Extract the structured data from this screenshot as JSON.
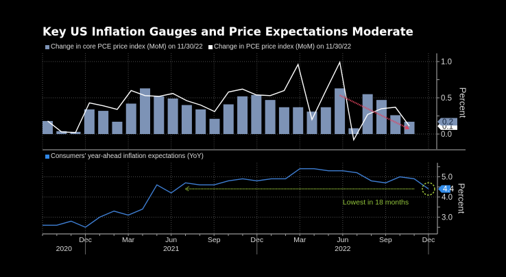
{
  "title": "Key US Inflation Gauges and Price Expectations Moderate",
  "legend_top": [
    {
      "label": "Change in core PCE price index (MoM) on 11/30/22",
      "color": "#7d93b6"
    },
    {
      "label": "Change in PCE price index (MoM) on 11/30/22",
      "color": "#ffffff"
    }
  ],
  "legend_bottom": [
    {
      "label": "Consumers' year-ahead inflation expectations (YoY)",
      "color": "#2f86e6"
    }
  ],
  "colors": {
    "background": "#000000",
    "grid": "#4f4f4f",
    "axis": "#9a9a9a",
    "text": "#d9d9d9",
    "separator": "#5a5a5a"
  },
  "chart_data": [
    {
      "type": "bar",
      "panel": "top",
      "title": "",
      "categories": [
        "Sep 2020",
        "Oct 2020",
        "Nov 2020",
        "Dec 2020",
        "Jan 2021",
        "Feb 2021",
        "Mar 2021",
        "Apr 2021",
        "May 2021",
        "Jun 2021",
        "Jul 2021",
        "Aug 2021",
        "Sep 2021",
        "Oct 2021",
        "Nov 2021",
        "Dec 2021",
        "Jan 2022",
        "Feb 2022",
        "Mar 2022",
        "Apr 2022",
        "May 2022",
        "Jun 2022",
        "Jul 2022",
        "Aug 2022",
        "Sep 2022",
        "Oct 2022",
        "Nov 2022"
      ],
      "series": [
        {
          "name": "Change in core PCE price index (MoM) on 11/30/22",
          "type": "bar",
          "color": "#7d93b6",
          "values": [
            0.18,
            0.04,
            0.03,
            0.34,
            0.32,
            0.17,
            0.42,
            0.63,
            0.52,
            0.49,
            0.4,
            0.34,
            0.21,
            0.41,
            0.52,
            0.54,
            0.47,
            0.37,
            0.37,
            0.31,
            0.37,
            0.63,
            0.08,
            0.55,
            0.47,
            0.26,
            0.17
          ]
        },
        {
          "name": "Change in PCE price index (MoM) on 11/30/22",
          "type": "line",
          "color": "#ffffff",
          "values": [
            0.18,
            0.03,
            0.02,
            0.43,
            0.39,
            0.34,
            0.6,
            0.53,
            0.52,
            0.56,
            0.46,
            0.4,
            0.31,
            0.58,
            0.62,
            0.54,
            0.53,
            0.6,
            0.96,
            0.2,
            0.6,
            0.99,
            -0.08,
            0.27,
            0.35,
            0.37,
            0.11
          ]
        }
      ],
      "xlabel": "",
      "ylabel": "Percent",
      "ylim": [
        -0.2,
        1.1
      ],
      "yticks": [
        0.0,
        0.5,
        1.0
      ],
      "ytick_labels": [
        "0.0",
        "0.5",
        "1.0"
      ],
      "grid": true,
      "last_value_labels": [
        {
          "series": 1,
          "text": "0.1",
          "value": 0.11,
          "bg": "#ffffff",
          "fg": "#222222"
        },
        {
          "series": 0,
          "text": "0.2",
          "value": 0.17,
          "bg": "#7d93b6",
          "fg": "#14233a"
        }
      ],
      "annotations": [
        {
          "type": "arrow",
          "style": "dotted",
          "color": "#e0445f",
          "from": {
            "category": "Jun 2022",
            "value": 0.535
          },
          "to": {
            "category": "Nov 2022",
            "value": 0.07
          }
        }
      ]
    },
    {
      "type": "line",
      "panel": "bottom",
      "title": "",
      "x": [
        "Sep 2020",
        "Oct 2020",
        "Nov 2020",
        "Dec 2020",
        "Jan 2021",
        "Feb 2021",
        "Mar 2021",
        "Apr 2021",
        "May 2021",
        "Jun 2021",
        "Jul 2021",
        "Aug 2021",
        "Sep 2021",
        "Oct 2021",
        "Nov 2021",
        "Dec 2021",
        "Jan 2022",
        "Feb 2022",
        "Mar 2022",
        "Apr 2022",
        "May 2022",
        "Jun 2022",
        "Jul 2022",
        "Aug 2022",
        "Sep 2022",
        "Oct 2022",
        "Nov 2022",
        "Dec 2022"
      ],
      "series": [
        {
          "name": "Consumers' year-ahead inflation expectations (YoY)",
          "type": "line",
          "color": "#3f7fd4",
          "values": [
            2.6,
            2.6,
            2.8,
            2.5,
            3.0,
            3.3,
            3.1,
            3.4,
            4.6,
            4.2,
            4.7,
            4.6,
            4.6,
            4.8,
            4.9,
            4.8,
            4.9,
            4.9,
            5.4,
            5.4,
            5.3,
            5.3,
            5.2,
            4.8,
            4.7,
            5.0,
            4.9,
            4.4
          ]
        }
      ],
      "xlabel": "",
      "ylabel": "Percent",
      "ylim": [
        2.2,
        5.7
      ],
      "yticks": [
        3.0,
        4.0,
        5.0
      ],
      "ytick_labels": [
        "3.0",
        "4.0",
        "5.0"
      ],
      "grid": true,
      "last_value_label": {
        "text": "4.4",
        "value": 4.4,
        "bg": "#2f8ae8",
        "fg": "#ffffff"
      },
      "annotations": [
        {
          "type": "arrow",
          "style": "dotted",
          "color": "#9bc83b",
          "from": {
            "x": "Nov 2022",
            "value": 4.4
          },
          "to": {
            "x": "Jul 2021",
            "value": 4.4
          }
        },
        {
          "type": "circle",
          "style": "dashed",
          "color": "#a6cc3c",
          "at": {
            "x": "Dec 2022",
            "value": 4.4
          }
        },
        {
          "type": "text",
          "text": "Lowest in 18 months",
          "color": "#8fc03a",
          "at": {
            "x": "Jun 2022",
            "value": 3.62
          }
        }
      ]
    }
  ],
  "x_axis": {
    "tick_labels": [
      {
        "at": "Dec 2020",
        "label": "Dec"
      },
      {
        "at": "Mar 2021",
        "label": "Mar"
      },
      {
        "at": "Jun 2021",
        "label": "Jun"
      },
      {
        "at": "Sep 2021",
        "label": "Sep"
      },
      {
        "at": "Dec 2021",
        "label": "Dec"
      },
      {
        "at": "Mar 2022",
        "label": "Mar"
      },
      {
        "at": "Jun 2022",
        "label": "Jun"
      },
      {
        "at": "Sep 2022",
        "label": "Sep"
      },
      {
        "at": "Dec 2022",
        "label": "Dec"
      }
    ],
    "year_labels": [
      {
        "label": "2020",
        "from": "Sep 2020",
        "to": "Dec 2020"
      },
      {
        "label": "2021",
        "from": "Dec 2020",
        "to": "Dec 2021"
      },
      {
        "label": "2022",
        "from": "Dec 2021",
        "to": "Dec 2022"
      }
    ],
    "year_separators": [
      "Dec 2020",
      "Dec 2021",
      "Dec 2022"
    ]
  }
}
